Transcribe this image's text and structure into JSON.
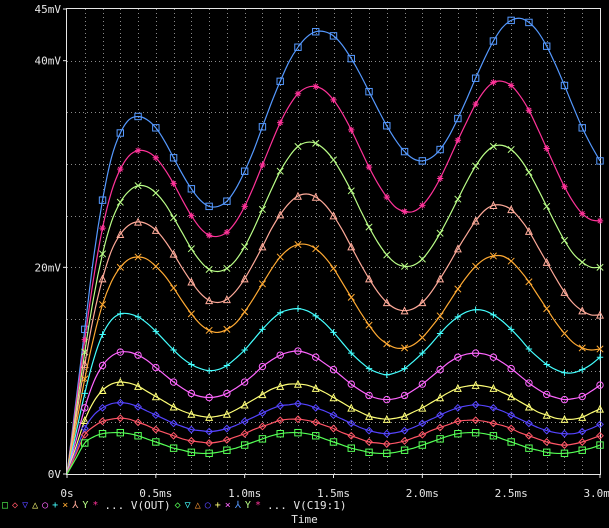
{
  "chart_data": {
    "type": "line",
    "xlabel": "Time",
    "ylabel": "",
    "xlim": [
      0,
      3.0
    ],
    "ylim": [
      0,
      45
    ],
    "x_ticks": [
      {
        "value": 0,
        "label": "0s"
      },
      {
        "value": 0.5,
        "label": "0.5ms"
      },
      {
        "value": 1.0,
        "label": "1.0ms"
      },
      {
        "value": 1.5,
        "label": "1.5ms"
      },
      {
        "value": 2.0,
        "label": "2.0ms"
      },
      {
        "value": 2.5,
        "label": "2.5ms"
      },
      {
        "value": 3.0,
        "label": "3.0ms"
      }
    ],
    "y_ticks": [
      {
        "value": 0,
        "label": "0V"
      },
      {
        "value": 20,
        "label": "20mV"
      },
      {
        "value": 40,
        "label": "40mV"
      },
      {
        "value": 45,
        "label": "45mV"
      }
    ],
    "grid": true,
    "x": [
      0,
      0.05,
      0.1,
      0.15,
      0.2,
      0.25,
      0.3,
      0.35,
      0.4,
      0.45,
      0.5,
      0.55,
      0.6,
      0.65,
      0.7,
      0.75,
      0.8,
      0.85,
      0.9,
      0.95,
      1.0,
      1.05,
      1.1,
      1.15,
      1.2,
      1.25,
      1.3,
      1.35,
      1.4,
      1.45,
      1.5,
      1.55,
      1.6,
      1.65,
      1.7,
      1.75,
      1.8,
      1.85,
      1.9,
      1.95,
      2.0,
      2.05,
      2.1,
      2.15,
      2.2,
      2.25,
      2.3,
      2.35,
      2.4,
      2.45,
      2.5,
      2.55,
      2.6,
      2.65,
      2.7,
      2.75,
      2.8,
      2.85,
      2.9,
      2.95,
      3.0
    ],
    "series": [
      {
        "color": "#5599ff",
        "marker": "square",
        "values": [
          0,
          7.0,
          14.0,
          21.0,
          26.5,
          30.6,
          33.0,
          34.3,
          34.6,
          34.3,
          33.5,
          32.2,
          30.6,
          29.0,
          27.6,
          26.5,
          25.9,
          25.9,
          26.4,
          27.6,
          29.3,
          31.3,
          33.6,
          35.9,
          38.0,
          39.9,
          41.3,
          42.3,
          42.8,
          42.8,
          42.4,
          41.5,
          40.2,
          38.7,
          37.0,
          35.3,
          33.7,
          32.3,
          31.2,
          30.5,
          30.3,
          30.6,
          31.4,
          32.7,
          34.4,
          36.3,
          38.3,
          40.2,
          41.9,
          43.2,
          43.9,
          44.1,
          43.7,
          42.8,
          41.4,
          39.6,
          37.6,
          35.5,
          33.5,
          31.8,
          30.3
        ]
      },
      {
        "color": "#ff3399",
        "marker": "star",
        "values": [
          0,
          6.5,
          13.0,
          19.0,
          23.8,
          27.3,
          29.5,
          30.8,
          31.3,
          31.2,
          30.6,
          29.5,
          28.1,
          26.5,
          25.0,
          23.8,
          23.1,
          23.0,
          23.4,
          24.4,
          25.9,
          27.8,
          29.9,
          32.0,
          34.0,
          35.6,
          36.8,
          37.4,
          37.5,
          37.1,
          36.2,
          34.9,
          33.3,
          31.5,
          29.7,
          28.1,
          26.8,
          25.8,
          25.4,
          25.4,
          26.0,
          27.1,
          28.6,
          30.4,
          32.3,
          34.1,
          35.8,
          37.1,
          37.9,
          38.0,
          37.6,
          36.6,
          35.2,
          33.4,
          31.5,
          29.6,
          27.8,
          26.3,
          25.2,
          24.6,
          24.5
        ]
      },
      {
        "color": "#bbff88",
        "marker": "x",
        "values": [
          0,
          5.9,
          11.8,
          17.1,
          21.3,
          24.4,
          26.3,
          27.4,
          27.9,
          27.8,
          27.2,
          26.2,
          24.8,
          23.3,
          21.8,
          20.6,
          19.8,
          19.6,
          19.9,
          20.7,
          22.0,
          23.7,
          25.6,
          27.5,
          29.3,
          30.7,
          31.7,
          32.1,
          32.0,
          31.4,
          30.4,
          29.0,
          27.4,
          25.6,
          23.9,
          22.4,
          21.2,
          20.4,
          20.1,
          20.2,
          20.8,
          21.9,
          23.3,
          24.9,
          26.6,
          28.3,
          29.8,
          31.0,
          31.7,
          31.8,
          31.4,
          30.5,
          29.2,
          27.6,
          25.9,
          24.2,
          22.6,
          21.3,
          20.5,
          20.0,
          20.0
        ]
      },
      {
        "color": "#ffaa99",
        "marker": "tri",
        "values": [
          0,
          5.3,
          10.6,
          15.3,
          18.9,
          21.6,
          23.2,
          24.1,
          24.4,
          24.2,
          23.6,
          22.6,
          21.3,
          19.9,
          18.6,
          17.5,
          16.8,
          16.6,
          16.9,
          17.7,
          18.9,
          20.4,
          22.0,
          23.7,
          25.1,
          26.2,
          26.9,
          27.1,
          26.8,
          26.1,
          25.0,
          23.6,
          22.0,
          20.4,
          18.9,
          17.6,
          16.6,
          16.0,
          15.8,
          16.0,
          16.6,
          17.6,
          18.9,
          20.3,
          21.8,
          23.2,
          24.5,
          25.5,
          26.0,
          26.0,
          25.6,
          24.7,
          23.5,
          22.0,
          20.5,
          19.0,
          17.6,
          16.5,
          15.8,
          15.4,
          15.4
        ]
      },
      {
        "color": "#ffaa33",
        "marker": "x",
        "values": [
          0,
          4.6,
          9.2,
          13.2,
          16.4,
          18.6,
          20.0,
          20.8,
          21.0,
          20.8,
          20.1,
          19.2,
          18.0,
          16.7,
          15.5,
          14.5,
          13.9,
          13.7,
          14.0,
          14.6,
          15.7,
          17.0,
          18.4,
          19.8,
          21.0,
          21.8,
          22.2,
          22.2,
          21.8,
          21.0,
          19.9,
          18.5,
          17.1,
          15.7,
          14.4,
          13.3,
          12.6,
          12.2,
          12.2,
          12.5,
          13.2,
          14.2,
          15.3,
          16.6,
          17.9,
          19.1,
          20.1,
          20.8,
          21.1,
          21.1,
          20.6,
          19.7,
          18.6,
          17.3,
          16.0,
          14.7,
          13.6,
          12.7,
          12.2,
          12.0,
          12.1
        ]
      },
      {
        "color": "#44ffff",
        "marker": "plus",
        "values": [
          0,
          3.9,
          7.8,
          11.1,
          13.5,
          14.9,
          15.5,
          15.5,
          15.2,
          14.6,
          13.8,
          12.9,
          12.0,
          11.2,
          10.6,
          10.2,
          10.0,
          10.1,
          10.5,
          11.2,
          12.0,
          13.0,
          14.0,
          14.9,
          15.6,
          15.9,
          16.0,
          15.8,
          15.3,
          14.6,
          13.7,
          12.7,
          11.7,
          10.9,
          10.2,
          9.8,
          9.6,
          9.8,
          10.2,
          10.9,
          11.7,
          12.6,
          13.6,
          14.5,
          15.2,
          15.7,
          15.9,
          15.8,
          15.4,
          14.8,
          14.0,
          13.1,
          12.1,
          11.3,
          10.6,
          10.1,
          9.8,
          9.8,
          10.1,
          10.6,
          11.3
        ]
      },
      {
        "color": "#ff66ff",
        "marker": "circle",
        "values": [
          0,
          3.2,
          6.4,
          8.9,
          10.5,
          11.4,
          11.8,
          11.8,
          11.5,
          11.0,
          10.3,
          9.6,
          8.9,
          8.3,
          7.8,
          7.5,
          7.4,
          7.5,
          7.8,
          8.3,
          8.9,
          9.6,
          10.4,
          11.0,
          11.5,
          11.8,
          11.9,
          11.7,
          11.3,
          10.7,
          10.1,
          9.4,
          8.7,
          8.1,
          7.6,
          7.3,
          7.2,
          7.3,
          7.6,
          8.1,
          8.7,
          9.4,
          10.1,
          10.8,
          11.3,
          11.6,
          11.7,
          11.6,
          11.3,
          10.8,
          10.2,
          9.5,
          8.8,
          8.2,
          7.7,
          7.4,
          7.2,
          7.3,
          7.5,
          8.0,
          8.6
        ]
      },
      {
        "color": "#ffff77",
        "marker": "tri",
        "values": [
          0,
          2.6,
          5.2,
          7.0,
          8.1,
          8.7,
          8.9,
          8.8,
          8.5,
          8.0,
          7.5,
          7.0,
          6.5,
          6.1,
          5.8,
          5.6,
          5.5,
          5.6,
          5.8,
          6.2,
          6.7,
          7.2,
          7.7,
          8.2,
          8.5,
          8.7,
          8.7,
          8.6,
          8.3,
          7.9,
          7.4,
          6.9,
          6.4,
          6.0,
          5.6,
          5.4,
          5.3,
          5.4,
          5.6,
          6.0,
          6.4,
          6.9,
          7.4,
          7.9,
          8.3,
          8.5,
          8.6,
          8.5,
          8.3,
          7.9,
          7.5,
          7.0,
          6.5,
          6.0,
          5.7,
          5.4,
          5.3,
          5.3,
          5.5,
          5.9,
          6.3
        ]
      },
      {
        "color": "#5544ff",
        "marker": "diamond",
        "values": [
          0,
          2.2,
          4.4,
          5.7,
          6.4,
          6.8,
          6.9,
          6.8,
          6.5,
          6.1,
          5.7,
          5.3,
          4.9,
          4.6,
          4.3,
          4.2,
          4.1,
          4.2,
          4.4,
          4.7,
          5.1,
          5.5,
          5.9,
          6.3,
          6.6,
          6.7,
          6.8,
          6.7,
          6.4,
          6.1,
          5.7,
          5.3,
          4.9,
          4.5,
          4.2,
          4.0,
          3.9,
          4.0,
          4.2,
          4.5,
          4.9,
          5.3,
          5.7,
          6.1,
          6.4,
          6.6,
          6.7,
          6.6,
          6.4,
          6.1,
          5.7,
          5.3,
          4.9,
          4.5,
          4.2,
          4.0,
          3.9,
          3.9,
          4.1,
          4.4,
          4.8
        ]
      },
      {
        "color": "#ff5566",
        "marker": "diamond",
        "values": [
          0,
          1.9,
          3.8,
          4.6,
          5.1,
          5.3,
          5.4,
          5.3,
          5.0,
          4.7,
          4.3,
          4.0,
          3.7,
          3.4,
          3.2,
          3.1,
          3.0,
          3.1,
          3.3,
          3.6,
          3.9,
          4.3,
          4.6,
          4.9,
          5.2,
          5.3,
          5.3,
          5.2,
          5.0,
          4.7,
          4.4,
          4.0,
          3.7,
          3.4,
          3.1,
          3.0,
          2.9,
          3.0,
          3.2,
          3.5,
          3.8,
          4.2,
          4.5,
          4.8,
          5.1,
          5.2,
          5.2,
          5.1,
          4.9,
          4.7,
          4.4,
          4.0,
          3.7,
          3.4,
          3.1,
          2.9,
          2.8,
          2.9,
          3.1,
          3.4,
          3.7
        ]
      },
      {
        "color": "#55ff55",
        "marker": "square",
        "values": [
          0,
          1.5,
          3.0,
          3.6,
          3.9,
          4.0,
          4.0,
          3.9,
          3.7,
          3.4,
          3.1,
          2.8,
          2.5,
          2.3,
          2.1,
          2.0,
          2.0,
          2.1,
          2.3,
          2.5,
          2.8,
          3.1,
          3.4,
          3.7,
          3.9,
          4.0,
          4.0,
          3.9,
          3.7,
          3.4,
          3.1,
          2.8,
          2.5,
          2.3,
          2.1,
          2.0,
          2.0,
          2.1,
          2.3,
          2.5,
          2.8,
          3.1,
          3.4,
          3.7,
          3.9,
          4.0,
          4.0,
          3.9,
          3.7,
          3.4,
          3.1,
          2.8,
          2.5,
          2.3,
          2.1,
          2.0,
          2.0,
          2.1,
          2.3,
          2.5,
          2.8
        ]
      }
    ],
    "legend": {
      "placement": "bottom",
      "groups": [
        {
          "markers": [
            {
              "s": "◇",
              "c": "#ff5566"
            },
            {
              "s": "▽",
              "c": "#5544ff"
            },
            {
              "s": "△",
              "c": "#ffff77"
            },
            {
              "s": "○",
              "c": "#ff66ff"
            },
            {
              "s": "+",
              "c": "#44ffff"
            },
            {
              "s": "×",
              "c": "#ffaa33"
            },
            {
              "s": "⅄",
              "c": "#ffaa99"
            },
            {
              "s": "Y",
              "c": "#bbff88"
            },
            {
              "s": "*",
              "c": "#ff3399"
            }
          ],
          "label": "... V(OUT)"
        },
        {
          "markers": [
            {
              "s": "◇",
              "c": "#55ff55"
            },
            {
              "s": "▽",
              "c": "#44ffff"
            },
            {
              "s": "△",
              "c": "#ff9933"
            },
            {
              "s": "○",
              "c": "#5544ff"
            },
            {
              "s": "+",
              "c": "#ffff77"
            },
            {
              "s": "×",
              "c": "#ff66ff"
            },
            {
              "s": "⅄",
              "c": "#5599ff"
            },
            {
              "s": "Y",
              "c": "#bbff88"
            },
            {
              "s": "*",
              "c": "#ff3399"
            }
          ],
          "label": "... V(C19:1)"
        }
      ],
      "lead_square_color": "#55ff55"
    }
  }
}
